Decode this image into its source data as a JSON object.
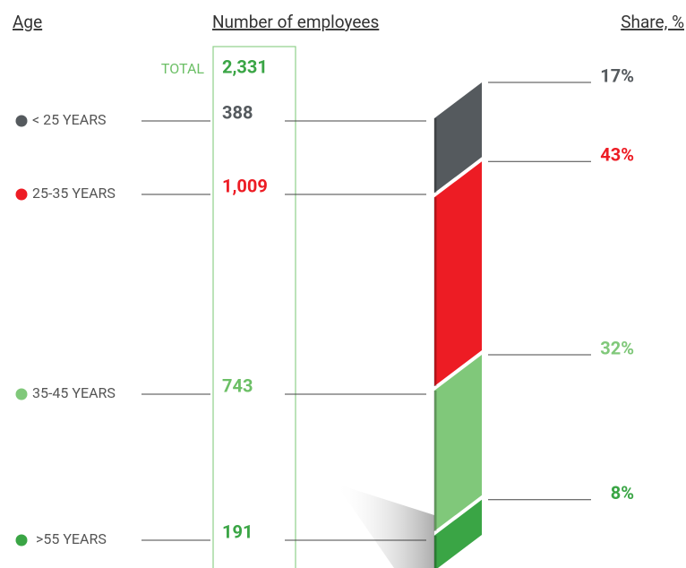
{
  "chart_data": {
    "type": "stacked_column",
    "headers": {
      "age": "Age",
      "count": "Number of employees",
      "share": "Share, %"
    },
    "total_text": "TOTAL",
    "total": {
      "value": 2331,
      "label": "2,331"
    },
    "categories": [
      "< 25 YEARS",
      "25-35 YEARS",
      "35-45 YEARS",
      ">55 YEARS"
    ],
    "colors": [
      "#555a5e",
      "#ed1c24",
      "#80c87a",
      "#3aa545"
    ],
    "counts": {
      "values": [
        388,
        1009,
        743,
        191
      ],
      "value_labels": [
        "388",
        "1,009",
        "743",
        "191"
      ]
    },
    "shares": {
      "values": [
        17,
        43,
        32,
        8
      ],
      "value_labels": [
        "17%",
        "43%",
        "32%",
        "8%"
      ]
    }
  }
}
